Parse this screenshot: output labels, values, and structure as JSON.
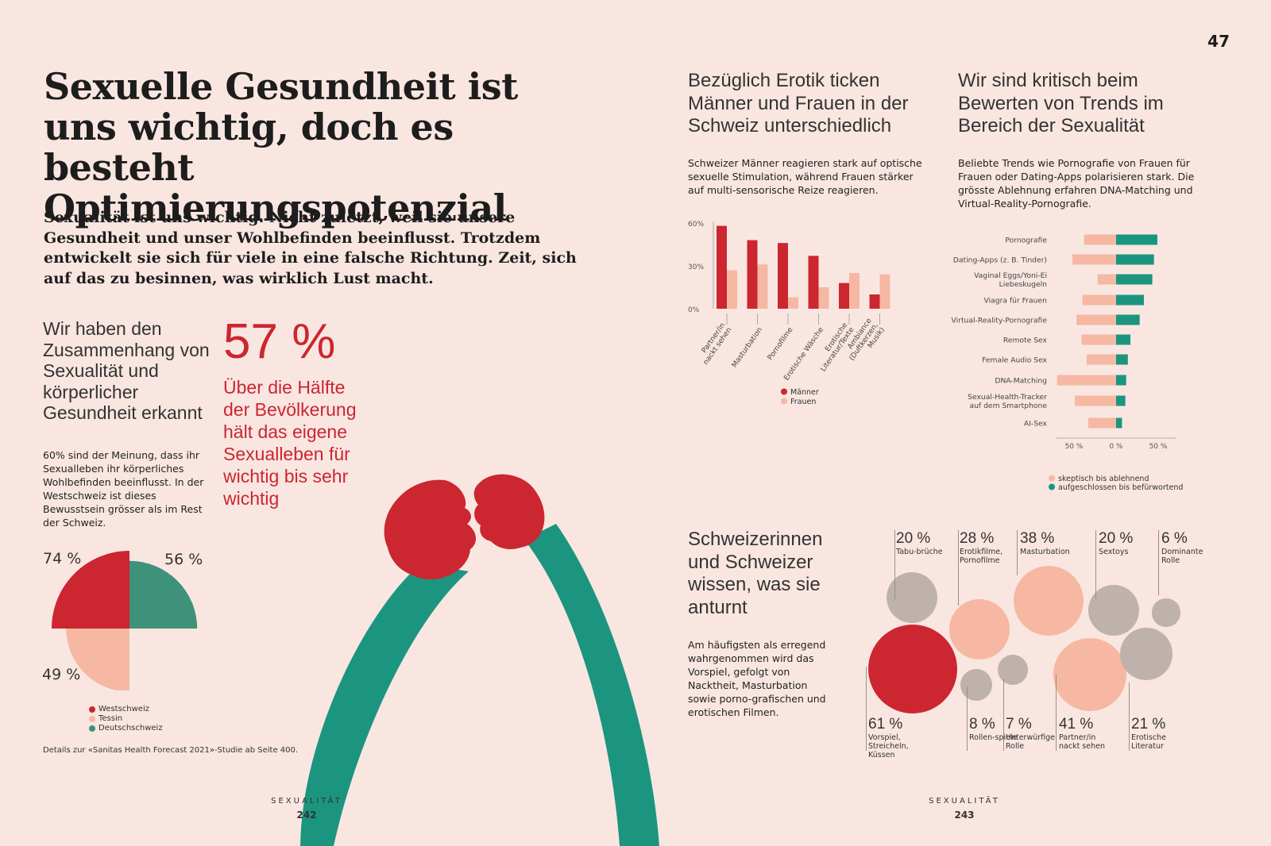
{
  "page_number_top": "47",
  "headline": "Sexuelle Gesundheit ist uns wichtig, doch es besteht Optimierungspotenzial",
  "lead": "Sexualität ist uns wichtig. Nicht zuletzt, weil sie unsere Gesundheit und unser Wohlbefinden beeinflusst. Trotzdem entwickelt sie sich für viele in eine falsche Richtung. Zeit, sich auf das zu besinnen, was wirklich Lust macht.",
  "section_health": {
    "title": "Wir haben den Zusammenhang von Sexualität und körperlicher Gesundheit erkannt",
    "body": "60% sind der Meinung, dass ihr Sexualleben ihr körperliches Wohlbefinden beeinflusst. In der Westschweiz ist dieses Bewusstsein grösser als im Rest der Schweiz.",
    "big_number": "57 %",
    "big_text": "Über die Hälfte der Bevölkerung hält das eigene Sexualleben für wichtig bis sehr wichtig",
    "source_note": "Details zur «Sanitas Health Forecast 2021»-Studie ab Seite 400."
  },
  "section_erotik": {
    "title": "Bezüglich Erotik ticken Männer und Frauen in der Schweiz unterschiedlich",
    "body": "Schweizer Männer reagieren stark auf optische sexuelle Stimulation, während Frauen stärker auf multi-sensorische Reize reagieren."
  },
  "section_trends": {
    "title": "Wir sind kritisch beim Bewerten von Trends im Bereich der Sexualität",
    "body": "Beliebte Trends wie Pornografie von Frauen für Frauen oder Dating-Apps polarisieren stark. Die grösste Ablehnung erfahren DNA-Matching und Virtual-Reality-Pornografie."
  },
  "section_turnon": {
    "title": "Schweizerinnen und Schweizer wissen, was sie anturnt",
    "body": "Am häufigsten als erregend wahrgenommen wird das Vorspiel, gefolgt von Nacktheit, Masturbation sowie porno-grafischen und erotischen Filmen."
  },
  "footer_left": {
    "label": "SEXUALITÄT",
    "page": "242"
  },
  "footer_right": {
    "label": "SEXUALITÄT",
    "page": "243"
  },
  "colors": {
    "background": "#f9e6e1",
    "red": "#cc2630",
    "salmon": "#f6b8a3",
    "green": "#3f927a",
    "teal": "#1b957f",
    "taupe": "#bfb1ab"
  },
  "chart_data": [
    {
      "id": "region-quarter-pie",
      "type": "pie",
      "labels": [
        "Westschweiz",
        "Tessin",
        "Deutschschweiz"
      ],
      "values": [
        74,
        49,
        56
      ],
      "value_labels": [
        "74 %",
        "49 %",
        "56 %"
      ],
      "colors": [
        "#cc2630",
        "#f6b8a3",
        "#3f927a"
      ],
      "legend": [
        "Westschweiz",
        "Tessin",
        "Deutschschweiz"
      ]
    },
    {
      "id": "erotik-bars",
      "type": "bar",
      "categories": [
        "Partner/in nackt sehen",
        "Masturbation",
        "Pornofilme",
        "Erotische Wäsche",
        "Erotische Literatur/Texte",
        "Ambiance (Duftkerzen, Musik)"
      ],
      "series": [
        {
          "name": "Männer",
          "values": [
            58,
            48,
            46,
            37,
            18,
            10
          ],
          "color": "#cc2630"
        },
        {
          "name": "Frauen",
          "values": [
            27,
            31,
            8,
            15,
            25,
            24
          ],
          "color": "#f6b8a3"
        }
      ],
      "yticks": [
        "60%",
        "30%",
        "0%"
      ],
      "ylim": [
        0,
        60
      ],
      "legend": [
        "Männer",
        "Frauen"
      ]
    },
    {
      "id": "trends-diverging",
      "type": "bar",
      "orientation": "horizontal-diverging",
      "categories": [
        "Pornografie",
        "Dating-Apps (z. B. Tinder)",
        "Vaginal Eggs/Yoni-Ei Liebeskugeln",
        "Viagra für Frauen",
        "Virtual-Reality-Pornografie",
        "Remote Sex",
        "Female Audio Sex",
        "DNA-Matching",
        "Sexual-Health-Tracker auf dem Smartphone",
        "AI-Sex"
      ],
      "series": [
        {
          "name": "skeptisch bis ablehnend",
          "values": [
            38,
            52,
            22,
            40,
            47,
            41,
            35,
            70,
            49,
            33
          ],
          "color": "#f6b8a3"
        },
        {
          "name": "aufgeschlossen bis befürwortend",
          "values": [
            49,
            45,
            43,
            33,
            28,
            17,
            14,
            12,
            11,
            7
          ],
          "color": "#1b957f"
        }
      ],
      "xticks": [
        "50 %",
        "0 %",
        "50 %"
      ],
      "xlim": [
        -70,
        70
      ],
      "legend": [
        "skeptisch bis ablehnend",
        "aufgeschlossen bis befürwortend"
      ]
    },
    {
      "id": "turnon-bubbles",
      "type": "scatter",
      "items": [
        {
          "value": "20 %",
          "label": "Tabu-brüche",
          "pct": 20,
          "color": "#bfb1ab"
        },
        {
          "value": "28 %",
          "label": "Erotikfilme, Pornofilme",
          "pct": 28,
          "color": "#f6b8a3"
        },
        {
          "value": "38 %",
          "label": "Masturbation",
          "pct": 38,
          "color": "#f6b8a3"
        },
        {
          "value": "20 %",
          "label": "Sextoys",
          "pct": 20,
          "color": "#bfb1ab"
        },
        {
          "value": "6 %",
          "label": "Dominante Rolle",
          "pct": 6,
          "color": "#bfb1ab"
        },
        {
          "value": "61 %",
          "label": "Vorspiel, Streicheln, Küssen",
          "pct": 61,
          "color": "#cc2630"
        },
        {
          "value": "8 %",
          "label": "Rollen-spiele",
          "pct": 8,
          "color": "#bfb1ab"
        },
        {
          "value": "7 %",
          "label": "Unterwürfige Rolle",
          "pct": 7,
          "color": "#bfb1ab"
        },
        {
          "value": "41 %",
          "label": "Partner/in nackt sehen",
          "pct": 41,
          "color": "#f6b8a3"
        },
        {
          "value": "21 %",
          "label": "Erotische Literatur",
          "pct": 21,
          "color": "#bfb1ab"
        }
      ]
    }
  ]
}
